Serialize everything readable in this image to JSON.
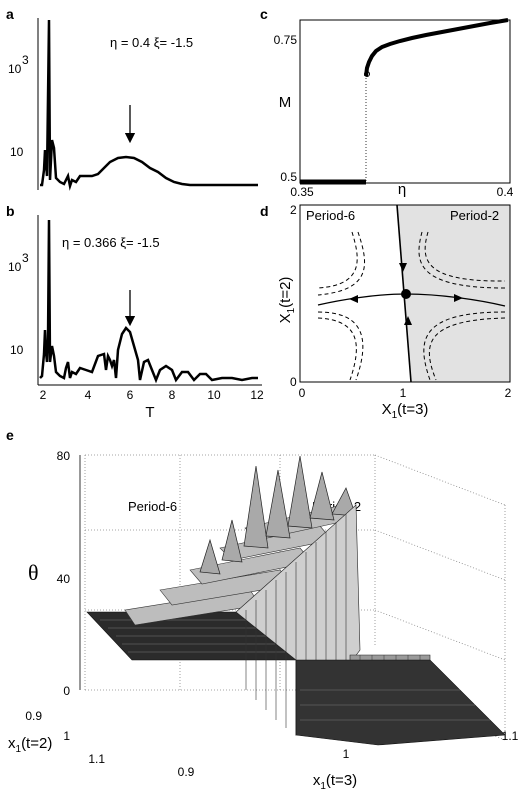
{
  "panels": {
    "a": {
      "label": "a",
      "annotation": "η = 0.4 ξ= -1.5",
      "ytick_high": "10",
      "ytick_high_exp": "3",
      "ytick_low": "10"
    },
    "b": {
      "label": "b",
      "annotation": "η = 0.366 ξ= -1.5",
      "ytick_high": "10",
      "ytick_high_exp": "3",
      "ytick_low": "10"
    },
    "c": {
      "label": "c",
      "ylabel": "M",
      "xlabel": "η"
    },
    "d": {
      "label": "d",
      "region_left": "Period-6",
      "region_right": "Period-2",
      "xlabel": "X",
      "xlabel_sub": "1",
      "xlabel_arg": "(t=3)",
      "ylabel": "X",
      "ylabel_sub": "1",
      "ylabel_arg": "(t=2)"
    },
    "e": {
      "label": "e",
      "zlabel": "θ",
      "region_left": "Period-6",
      "region_right": "Period-2",
      "ylabel": "x",
      "ylabel_sub": "1",
      "ylabel_arg": "(t=2)",
      "xlabel": "x",
      "xlabel_sub": "1",
      "xlabel_arg": "(t=3)"
    }
  },
  "ab_xaxis": {
    "xlabel": "T",
    "ticks": [
      "2",
      "4",
      "6",
      "8",
      "10",
      "12"
    ]
  },
  "chart_data": [
    {
      "type": "line",
      "panel": "a",
      "xlabel": "",
      "xlim": [
        1.5,
        12
      ],
      "yscale": "log",
      "yticks": [
        "10",
        "10^3"
      ],
      "peaks_x": [
        2,
        6
      ],
      "arrow_at_x": 6
    },
    {
      "type": "line",
      "panel": "b",
      "xlabel": "T",
      "xlim": [
        1.5,
        12
      ],
      "yscale": "log",
      "yticks": [
        "10",
        "10^3"
      ],
      "peaks_x": [
        2,
        6
      ],
      "arrow_at_x": 6
    },
    {
      "type": "scatter",
      "panel": "c",
      "xlabel": "η",
      "ylabel": "M",
      "xlim": [
        0.35,
        0.4
      ],
      "ylim": [
        0.48,
        0.8
      ],
      "xticks": [
        "0.35",
        "0.4"
      ],
      "yticks": [
        "0.5",
        "0.75"
      ],
      "transition_x": 0.366
    },
    {
      "type": "line",
      "panel": "d",
      "xlim": [
        0,
        2
      ],
      "ylim": [
        0,
        2
      ],
      "xticks": [
        "0",
        "1",
        "2"
      ],
      "yticks": [
        "0",
        "2"
      ],
      "saddle": [
        1.05,
        1.05
      ]
    },
    {
      "type": "surface",
      "panel": "e",
      "zlim": [
        0,
        80
      ],
      "zticks": [
        "0",
        "40",
        "80"
      ],
      "xticks": [
        "0.9",
        "1",
        "1.1"
      ],
      "yticks": [
        "0.9",
        "1",
        "1.1"
      ]
    }
  ]
}
